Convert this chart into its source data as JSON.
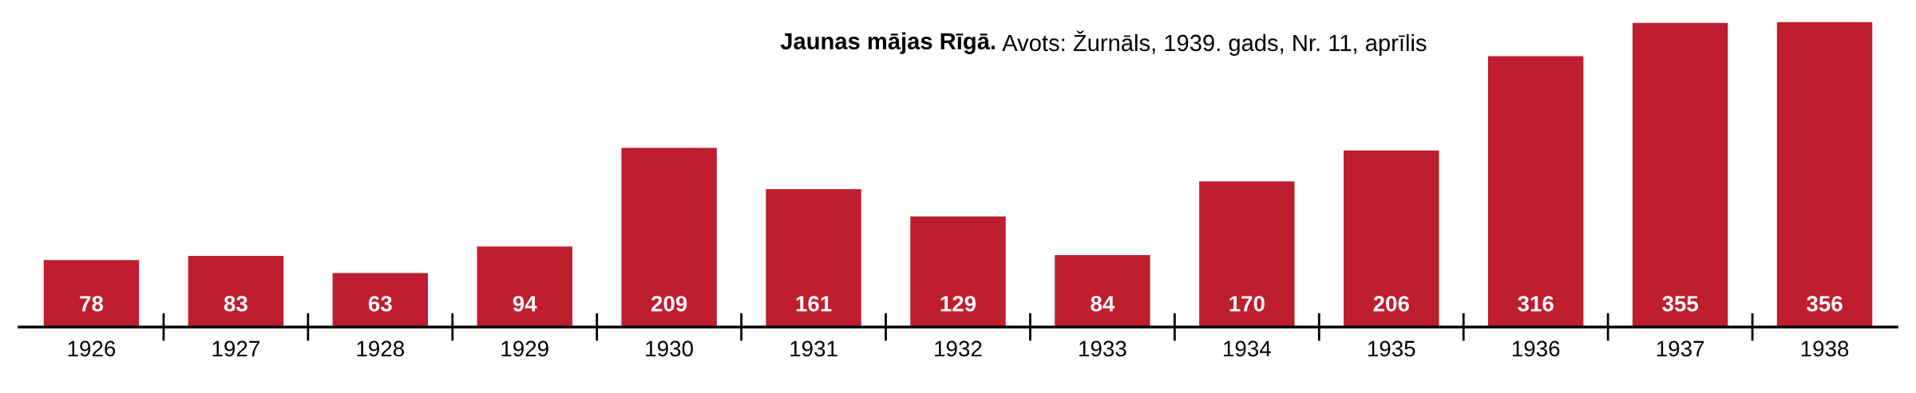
{
  "chart_data": {
    "type": "bar",
    "title": "Jaunas mājas Rīgā.",
    "annotations": [
      "Avots: Žurnāls, 1939. gads, Nr. 11, aprīlis"
    ],
    "categories": [
      "1926",
      "1927",
      "1928",
      "1929",
      "1930",
      "1931",
      "1932",
      "1933",
      "1934",
      "1935",
      "1936",
      "1937",
      "1938"
    ],
    "values": [
      78,
      83,
      63,
      94,
      209,
      161,
      129,
      84,
      170,
      206,
      316,
      355,
      356
    ],
    "color": "#be1e2d",
    "data_labels": true,
    "grid": false,
    "legend": false
  }
}
